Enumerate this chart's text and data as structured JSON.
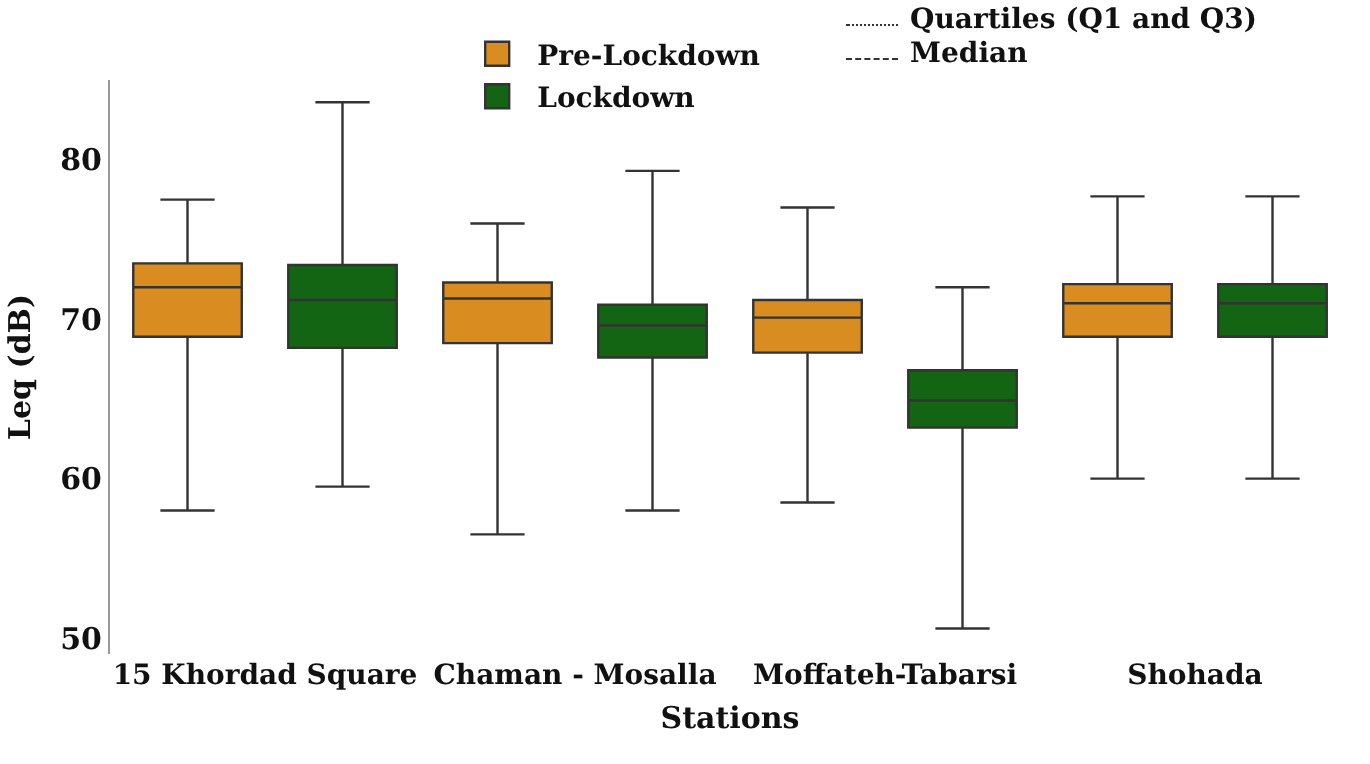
{
  "chart_data": {
    "type": "box",
    "xlabel": "Stations",
    "ylabel": "Leq (dB)",
    "categories": [
      "15 Khordad Square",
      "Chaman - Mosalla",
      "Moffateh-Tabarsi",
      "Shohada"
    ],
    "series": [
      {
        "name": "Pre-Lockdown",
        "color": "#d98c1f",
        "boxes": [
          {
            "low": 58,
            "q1": 68.9,
            "median": 72,
            "q3": 73.5,
            "high": 77.5
          },
          {
            "low": 56.5,
            "q1": 68.5,
            "median": 71.3,
            "q3": 72.3,
            "high": 76
          },
          {
            "low": 58.5,
            "q1": 67.9,
            "median": 70.1,
            "q3": 71.2,
            "high": 77
          },
          {
            "low": 60,
            "q1": 68.9,
            "median": 71,
            "q3": 72.2,
            "high": 77.7
          }
        ]
      },
      {
        "name": "Lockdown",
        "color": "#136413",
        "boxes": [
          {
            "low": 59.5,
            "q1": 68.2,
            "median": 71.2,
            "q3": 73.4,
            "high": 83.6
          },
          {
            "low": 58,
            "q1": 67.6,
            "median": 69.6,
            "q3": 70.9,
            "high": 79.3
          },
          {
            "low": 50.6,
            "q1": 63.2,
            "median": 64.9,
            "q3": 66.8,
            "high": 72
          },
          {
            "low": 60,
            "q1": 68.9,
            "median": 71,
            "q3": 72.2,
            "high": 77.7
          }
        ]
      }
    ],
    "annotations": [
      "Quartiles (Q1 and Q3)",
      "Median"
    ],
    "ylim": [
      49,
      85
    ],
    "yticks": [
      50,
      60,
      70,
      80
    ],
    "grid": false,
    "legend": "top"
  }
}
